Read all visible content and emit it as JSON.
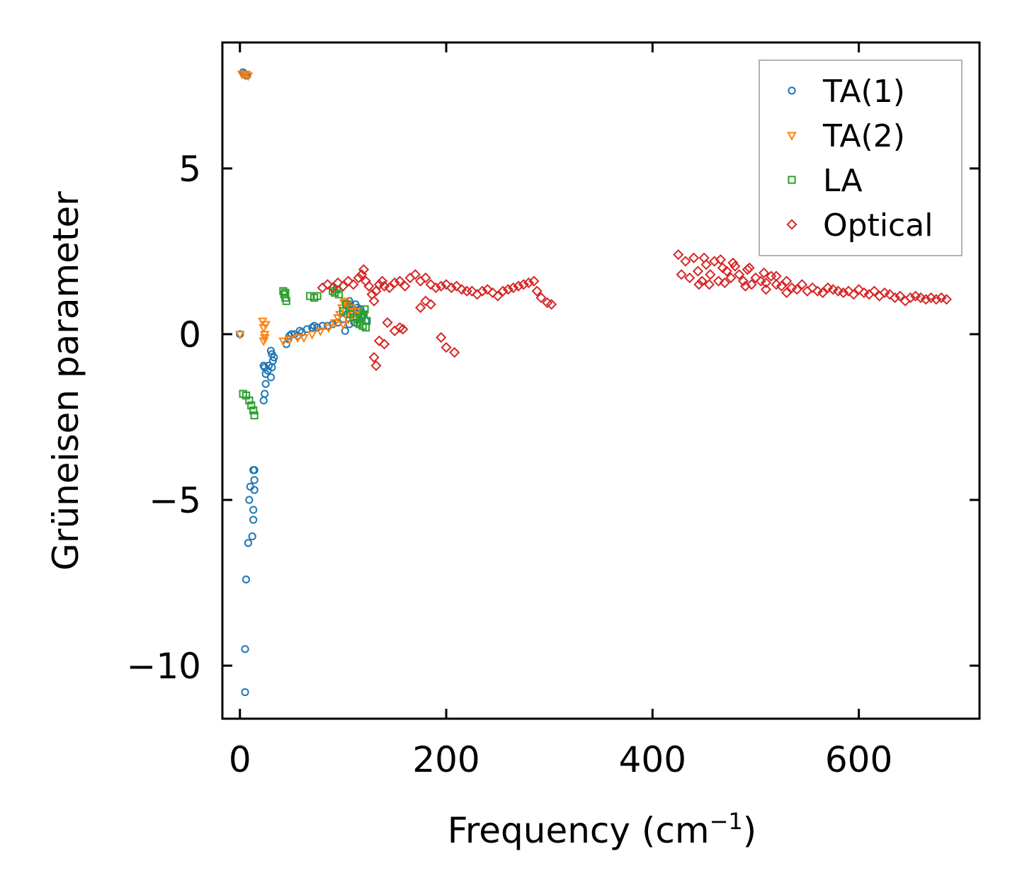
{
  "chart_data": {
    "type": "scatter",
    "title": "",
    "xlabel": "Frequency (cm",
    "xlabel_sup": "−1",
    "xlabel_end": ")",
    "ylabel": "Grüneisen parameter",
    "xlim": [
      -17,
      717
    ],
    "ylim": [
      -11.6,
      8.8
    ],
    "xticks": [
      0,
      200,
      400,
      600
    ],
    "xtick_labels": [
      "0",
      "200",
      "400",
      "600"
    ],
    "yticks": [
      -10,
      -5,
      0,
      5
    ],
    "ytick_labels": [
      "−10",
      "−5",
      "0",
      "5"
    ],
    "legend_position": "top-right",
    "series": [
      {
        "name": "TA(1)",
        "marker": "circle",
        "color": "#1f77b4",
        "points": [
          [
            3,
            7.9
          ],
          [
            4,
            7.85
          ],
          [
            5,
            7.85
          ],
          [
            6,
            7.8
          ],
          [
            7,
            7.8
          ],
          [
            0,
            0
          ],
          [
            5,
            -10.8
          ],
          [
            5,
            -9.5
          ],
          [
            6,
            -7.4
          ],
          [
            8,
            -6.3
          ],
          [
            12,
            -6.1
          ],
          [
            9,
            -5
          ],
          [
            13,
            -5.6
          ],
          [
            13,
            -5.3
          ],
          [
            10,
            -4.6
          ],
          [
            14,
            -4.7
          ],
          [
            14,
            -4.4
          ],
          [
            13,
            -4.1
          ],
          [
            14,
            -4.1
          ],
          [
            23,
            -2.0
          ],
          [
            24,
            -1.8
          ],
          [
            25,
            -1.5
          ],
          [
            25,
            -1.2
          ],
          [
            24,
            -1.0
          ],
          [
            23,
            -0.95
          ],
          [
            27,
            -1.1
          ],
          [
            28,
            -0.95
          ],
          [
            30,
            -1.3
          ],
          [
            31,
            -1.0
          ],
          [
            32,
            -0.8
          ],
          [
            31,
            -0.6
          ],
          [
            30,
            -0.5
          ],
          [
            33,
            -0.7
          ],
          [
            45,
            -0.3
          ],
          [
            47,
            -0.15
          ],
          [
            48,
            -0.05
          ],
          [
            50,
            0.0
          ],
          [
            53,
            0.0
          ],
          [
            56,
            -0.05
          ],
          [
            58,
            0.1
          ],
          [
            60,
            0.05
          ],
          [
            65,
            0.15
          ],
          [
            70,
            0.2
          ],
          [
            72,
            0.25
          ],
          [
            75,
            0.2
          ],
          [
            80,
            0.25
          ],
          [
            85,
            0.25
          ],
          [
            90,
            0.3
          ],
          [
            95,
            0.35
          ],
          [
            100,
            0.45
          ],
          [
            102,
            0.1
          ],
          [
            104,
            0.6
          ],
          [
            105,
            0.8
          ],
          [
            106,
            1.0
          ],
          [
            107,
            0.9
          ],
          [
            108,
            0.7
          ],
          [
            110,
            0.5
          ],
          [
            111,
            0.35
          ],
          [
            112,
            0.9
          ],
          [
            114,
            0.8
          ],
          [
            115,
            0.6
          ],
          [
            116,
            0.7
          ],
          [
            118,
            0.5
          ],
          [
            120,
            0.6
          ],
          [
            122,
            0.4
          ],
          [
            106,
            0.3
          ],
          [
            109,
            0.65
          ],
          [
            113,
            0.45
          ],
          [
            117,
            0.75
          ],
          [
            119,
            0.55
          ]
        ]
      },
      {
        "name": "TA(2)",
        "marker": "triangle-down",
        "color": "#ff7f0e",
        "points": [
          [
            2,
            7.85
          ],
          [
            4,
            7.85
          ],
          [
            6,
            7.85
          ],
          [
            8,
            7.8
          ],
          [
            0,
            0
          ],
          [
            22,
            0.4
          ],
          [
            23,
            0.2
          ],
          [
            24,
            0.0
          ],
          [
            23,
            -0.2
          ],
          [
            25,
            0.3
          ],
          [
            24,
            -0.1
          ],
          [
            42,
            -0.2
          ],
          [
            48,
            -0.15
          ],
          [
            56,
            -0.1
          ],
          [
            62,
            -0.1
          ],
          [
            70,
            0.0
          ],
          [
            78,
            0.1
          ],
          [
            86,
            0.2
          ],
          [
            92,
            0.35
          ],
          [
            95,
            0.5
          ],
          [
            97,
            0.6
          ],
          [
            99,
            0.8
          ],
          [
            101,
            0.95
          ],
          [
            102,
            1.0
          ],
          [
            104,
            0.9
          ],
          [
            106,
            0.7
          ],
          [
            108,
            0.8
          ],
          [
            110,
            0.6
          ],
          [
            112,
            0.5
          ],
          [
            114,
            0.7
          ],
          [
            100,
            0.3
          ],
          [
            105,
            0.45
          ]
        ]
      },
      {
        "name": "LA",
        "marker": "square",
        "color": "#2ca02c",
        "points": [
          [
            3,
            -1.8
          ],
          [
            6,
            -1.85
          ],
          [
            9,
            -2.0
          ],
          [
            11,
            -2.15
          ],
          [
            13,
            -2.3
          ],
          [
            14,
            -2.45
          ],
          [
            42,
            1.3
          ],
          [
            43,
            1.2
          ],
          [
            44,
            1.1
          ],
          [
            45,
            1.0
          ],
          [
            44,
            1.25
          ],
          [
            68,
            1.15
          ],
          [
            72,
            1.1
          ],
          [
            75,
            1.15
          ],
          [
            90,
            1.3
          ],
          [
            92,
            1.25
          ],
          [
            94,
            1.35
          ],
          [
            96,
            1.2
          ],
          [
            100,
            0.7
          ],
          [
            103,
            0.9
          ],
          [
            107,
            0.6
          ],
          [
            110,
            0.5
          ],
          [
            114,
            0.35
          ],
          [
            116,
            0.3
          ],
          [
            118,
            0.5
          ],
          [
            120,
            0.6
          ],
          [
            122,
            0.2
          ],
          [
            123,
            0.4
          ],
          [
            121,
            0.75
          ],
          [
            119,
            0.25
          ]
        ]
      },
      {
        "name": "Optical",
        "marker": "diamond",
        "color": "#d62728",
        "points": [
          [
            80,
            1.4
          ],
          [
            85,
            1.5
          ],
          [
            90,
            1.4
          ],
          [
            95,
            1.55
          ],
          [
            100,
            1.45
          ],
          [
            105,
            1.6
          ],
          [
            110,
            1.5
          ],
          [
            115,
            1.7
          ],
          [
            118,
            1.8
          ],
          [
            120,
            1.95
          ],
          [
            122,
            1.6
          ],
          [
            125,
            1.45
          ],
          [
            128,
            1.2
          ],
          [
            130,
            1.0
          ],
          [
            132,
            1.3
          ],
          [
            135,
            1.5
          ],
          [
            138,
            1.6
          ],
          [
            140,
            1.45
          ],
          [
            145,
            1.4
          ],
          [
            150,
            1.55
          ],
          [
            155,
            1.6
          ],
          [
            160,
            1.45
          ],
          [
            165,
            1.7
          ],
          [
            170,
            1.8
          ],
          [
            175,
            1.6
          ],
          [
            180,
            1.7
          ],
          [
            185,
            1.5
          ],
          [
            190,
            1.4
          ],
          [
            195,
            1.45
          ],
          [
            200,
            1.5
          ],
          [
            205,
            1.4
          ],
          [
            210,
            1.45
          ],
          [
            215,
            1.35
          ],
          [
            220,
            1.3
          ],
          [
            225,
            1.3
          ],
          [
            230,
            1.2
          ],
          [
            235,
            1.3
          ],
          [
            240,
            1.35
          ],
          [
            245,
            1.25
          ],
          [
            250,
            1.15
          ],
          [
            255,
            1.3
          ],
          [
            260,
            1.35
          ],
          [
            265,
            1.4
          ],
          [
            270,
            1.45
          ],
          [
            275,
            1.5
          ],
          [
            280,
            1.55
          ],
          [
            285,
            1.6
          ],
          [
            288,
            1.3
          ],
          [
            292,
            1.1
          ],
          [
            298,
            0.95
          ],
          [
            302,
            0.9
          ],
          [
            130,
            -0.7
          ],
          [
            132,
            -0.95
          ],
          [
            135,
            -0.2
          ],
          [
            140,
            -0.3
          ],
          [
            143,
            0.35
          ],
          [
            150,
            0.1
          ],
          [
            155,
            0.2
          ],
          [
            158,
            0.15
          ],
          [
            175,
            0.8
          ],
          [
            180,
            1.0
          ],
          [
            185,
            0.9
          ],
          [
            195,
            -0.1
          ],
          [
            200,
            -0.4
          ],
          [
            208,
            -0.55
          ],
          [
            425,
            2.4
          ],
          [
            428,
            1.8
          ],
          [
            432,
            2.2
          ],
          [
            436,
            1.7
          ],
          [
            440,
            2.3
          ],
          [
            444,
            1.9
          ],
          [
            448,
            1.6
          ],
          [
            452,
            2.1
          ],
          [
            456,
            1.8
          ],
          [
            460,
            2.2
          ],
          [
            464,
            1.6
          ],
          [
            468,
            2.0
          ],
          [
            472,
            1.9
          ],
          [
            476,
            1.7
          ],
          [
            480,
            2.05
          ],
          [
            484,
            1.8
          ],
          [
            488,
            1.6
          ],
          [
            492,
            1.95
          ],
          [
            496,
            1.5
          ],
          [
            500,
            1.7
          ],
          [
            505,
            1.6
          ],
          [
            510,
            1.55
          ],
          [
            515,
            1.75
          ],
          [
            520,
            1.5
          ],
          [
            525,
            1.45
          ],
          [
            530,
            1.6
          ],
          [
            535,
            1.4
          ],
          [
            540,
            1.35
          ],
          [
            545,
            1.5
          ],
          [
            550,
            1.3
          ],
          [
            555,
            1.4
          ],
          [
            560,
            1.3
          ],
          [
            565,
            1.25
          ],
          [
            570,
            1.4
          ],
          [
            575,
            1.35
          ],
          [
            580,
            1.3
          ],
          [
            585,
            1.25
          ],
          [
            590,
            1.3
          ],
          [
            595,
            1.2
          ],
          [
            600,
            1.35
          ],
          [
            605,
            1.25
          ],
          [
            610,
            1.2
          ],
          [
            615,
            1.3
          ],
          [
            620,
            1.15
          ],
          [
            625,
            1.25
          ],
          [
            630,
            1.2
          ],
          [
            635,
            1.1
          ],
          [
            640,
            1.15
          ],
          [
            645,
            1.0
          ],
          [
            650,
            1.1
          ],
          [
            655,
            1.15
          ],
          [
            660,
            1.1
          ],
          [
            665,
            1.05
          ],
          [
            670,
            1.1
          ],
          [
            675,
            1.05
          ],
          [
            680,
            1.1
          ],
          [
            685,
            1.05
          ],
          [
            445,
            1.5
          ],
          [
            455,
            1.5
          ],
          [
            470,
            1.55
          ],
          [
            490,
            1.45
          ],
          [
            510,
            1.35
          ],
          [
            530,
            1.25
          ],
          [
            450,
            2.3
          ],
          [
            466,
            2.25
          ],
          [
            478,
            2.15
          ],
          [
            494,
            2.0
          ],
          [
            508,
            1.85
          ],
          [
            520,
            1.75
          ]
        ]
      }
    ]
  }
}
